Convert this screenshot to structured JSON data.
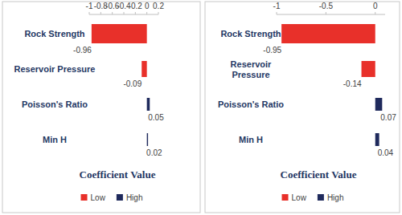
{
  "chart_data": [
    {
      "type": "bar",
      "orientation": "horizontal",
      "categories": [
        "Rock Strength",
        "Reservoir Pressure",
        "Poisson's Ratio",
        "Min H"
      ],
      "series": [
        {
          "name": "Low",
          "color": "#e8302a",
          "values": [
            -0.96,
            -0.09,
            null,
            null
          ]
        },
        {
          "name": "High",
          "color": "#1f2a5c",
          "values": [
            null,
            null,
            0.05,
            0.02
          ]
        }
      ],
      "xlabel": "Coefficient Value",
      "xlim": [
        -1,
        0.2
      ],
      "xticks": [
        -1,
        -0.8,
        -0.6,
        -0.4,
        -0.2,
        0,
        0.2
      ],
      "data_labels": true,
      "legend": "bottom"
    },
    {
      "type": "bar",
      "orientation": "horizontal",
      "categories": [
        "Rock Strength",
        "Reservoir Pressure",
        "Poisson's Ratio",
        "Min H"
      ],
      "series": [
        {
          "name": "Low",
          "color": "#e8302a",
          "values": [
            -0.95,
            -0.14,
            null,
            null
          ]
        },
        {
          "name": "High",
          "color": "#1f2a5c",
          "values": [
            null,
            null,
            0.07,
            0.04
          ]
        }
      ],
      "xlabel": "Coefficient Value",
      "xlim": [
        -1,
        0.1
      ],
      "xticks": [
        -1,
        -0.5,
        0
      ],
      "data_labels": true,
      "legend": "bottom"
    }
  ]
}
